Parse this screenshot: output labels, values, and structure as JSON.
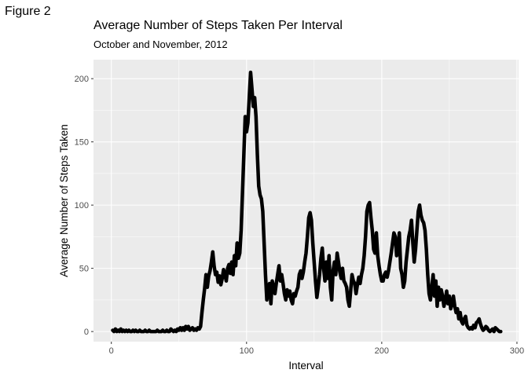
{
  "figure_label": "Figure 2",
  "chart_data": {
    "type": "line",
    "title": "Average Number of Steps Taken Per Interval",
    "subtitle": "October and November, 2012",
    "xlabel": "Interval",
    "ylabel": "Average Number of Steps Taken",
    "xlim": [
      -13.2,
      301.2
    ],
    "ylim": [
      -8,
      215
    ],
    "xticks": [
      0,
      100,
      200,
      300
    ],
    "yticks": [
      0,
      50,
      100,
      150,
      200
    ],
    "grid": true,
    "background": "#ebebeb",
    "gridline_color": "#ffffff",
    "line_color": "#000000",
    "series": [
      {
        "values": [
          [
            1,
            1
          ],
          [
            2,
            0
          ],
          [
            3,
            2
          ],
          [
            4,
            0
          ],
          [
            5,
            1
          ],
          [
            6,
            0
          ],
          [
            7,
            2
          ],
          [
            8,
            0
          ],
          [
            9,
            1
          ],
          [
            10,
            0
          ],
          [
            11,
            1
          ],
          [
            12,
            0
          ],
          [
            13,
            1
          ],
          [
            14,
            0
          ],
          [
            15,
            0
          ],
          [
            16,
            1
          ],
          [
            17,
            0
          ],
          [
            18,
            1
          ],
          [
            19,
            0
          ],
          [
            20,
            0
          ],
          [
            21,
            1
          ],
          [
            22,
            0
          ],
          [
            23,
            0
          ],
          [
            24,
            0
          ],
          [
            25,
            1
          ],
          [
            26,
            0
          ],
          [
            27,
            0
          ],
          [
            28,
            1
          ],
          [
            29,
            0
          ],
          [
            30,
            0
          ],
          [
            31,
            0
          ],
          [
            32,
            0
          ],
          [
            33,
            0
          ],
          [
            34,
            1
          ],
          [
            35,
            0
          ],
          [
            36,
            0
          ],
          [
            37,
            0
          ],
          [
            38,
            1
          ],
          [
            39,
            0
          ],
          [
            40,
            0
          ],
          [
            41,
            1
          ],
          [
            42,
            0
          ],
          [
            43,
            0
          ],
          [
            44,
            2
          ],
          [
            45,
            1
          ],
          [
            46,
            0
          ],
          [
            47,
            1
          ],
          [
            48,
            0
          ],
          [
            49,
            2
          ],
          [
            50,
            1
          ],
          [
            51,
            3
          ],
          [
            52,
            1
          ],
          [
            53,
            3
          ],
          [
            54,
            1
          ],
          [
            55,
            4
          ],
          [
            56,
            2
          ],
          [
            57,
            4
          ],
          [
            58,
            1
          ],
          [
            59,
            2
          ],
          [
            60,
            3
          ],
          [
            61,
            1
          ],
          [
            62,
            2
          ],
          [
            63,
            1
          ],
          [
            64,
            3
          ],
          [
            65,
            2
          ],
          [
            66,
            4
          ],
          [
            67,
            15
          ],
          [
            68,
            25
          ],
          [
            69,
            34
          ],
          [
            70,
            45
          ],
          [
            71,
            35
          ],
          [
            72,
            44
          ],
          [
            73,
            48
          ],
          [
            74,
            55
          ],
          [
            75,
            63
          ],
          [
            76,
            52
          ],
          [
            77,
            45
          ],
          [
            78,
            47
          ],
          [
            79,
            39
          ],
          [
            80,
            44
          ],
          [
            81,
            37
          ],
          [
            82,
            42
          ],
          [
            83,
            49
          ],
          [
            84,
            45
          ],
          [
            85,
            40
          ],
          [
            86,
            50
          ],
          [
            87,
            53
          ],
          [
            88,
            46
          ],
          [
            89,
            55
          ],
          [
            90,
            45
          ],
          [
            91,
            60
          ],
          [
            92,
            52
          ],
          [
            93,
            70
          ],
          [
            94,
            58
          ],
          [
            95,
            62
          ],
          [
            96,
            80
          ],
          [
            97,
            110
          ],
          [
            98,
            140
          ],
          [
            99,
            170
          ],
          [
            100,
            158
          ],
          [
            101,
            165
          ],
          [
            102,
            185
          ],
          [
            103,
            205
          ],
          [
            104,
            192
          ],
          [
            105,
            178
          ],
          [
            106,
            185
          ],
          [
            107,
            170
          ],
          [
            108,
            140
          ],
          [
            109,
            115
          ],
          [
            110,
            108
          ],
          [
            111,
            105
          ],
          [
            112,
            95
          ],
          [
            113,
            70
          ],
          [
            114,
            45
          ],
          [
            115,
            25
          ],
          [
            116,
            35
          ],
          [
            117,
            38
          ],
          [
            118,
            22
          ],
          [
            119,
            40
          ],
          [
            120,
            35
          ],
          [
            121,
            30
          ],
          [
            122,
            38
          ],
          [
            123,
            45
          ],
          [
            124,
            52
          ],
          [
            125,
            40
          ],
          [
            126,
            45
          ],
          [
            127,
            38
          ],
          [
            128,
            30
          ],
          [
            129,
            25
          ],
          [
            130,
            33
          ],
          [
            131,
            28
          ],
          [
            132,
            32
          ],
          [
            133,
            25
          ],
          [
            134,
            22
          ],
          [
            135,
            30
          ],
          [
            136,
            28
          ],
          [
            137,
            32
          ],
          [
            138,
            35
          ],
          [
            139,
            45
          ],
          [
            140,
            48
          ],
          [
            141,
            42
          ],
          [
            142,
            47
          ],
          [
            143,
            55
          ],
          [
            144,
            62
          ],
          [
            145,
            75
          ],
          [
            146,
            90
          ],
          [
            147,
            94
          ],
          [
            148,
            88
          ],
          [
            149,
            70
          ],
          [
            150,
            55
          ],
          [
            151,
            40
          ],
          [
            152,
            27
          ],
          [
            153,
            35
          ],
          [
            154,
            45
          ],
          [
            155,
            58
          ],
          [
            156,
            66
          ],
          [
            157,
            50
          ],
          [
            158,
            40
          ],
          [
            159,
            55
          ],
          [
            160,
            42
          ],
          [
            161,
            60
          ],
          [
            162,
            35
          ],
          [
            163,
            25
          ],
          [
            164,
            48
          ],
          [
            165,
            55
          ],
          [
            166,
            45
          ],
          [
            167,
            62
          ],
          [
            168,
            55
          ],
          [
            169,
            47
          ],
          [
            170,
            42
          ],
          [
            171,
            50
          ],
          [
            172,
            40
          ],
          [
            173,
            38
          ],
          [
            174,
            35
          ],
          [
            175,
            25
          ],
          [
            176,
            20
          ],
          [
            177,
            32
          ],
          [
            178,
            45
          ],
          [
            179,
            40
          ],
          [
            180,
            38
          ],
          [
            181,
            30
          ],
          [
            182,
            37
          ],
          [
            183,
            43
          ],
          [
            184,
            38
          ],
          [
            185,
            45
          ],
          [
            186,
            50
          ],
          [
            187,
            60
          ],
          [
            188,
            75
          ],
          [
            189,
            95
          ],
          [
            190,
            100
          ],
          [
            191,
            102
          ],
          [
            192,
            90
          ],
          [
            193,
            80
          ],
          [
            194,
            65
          ],
          [
            195,
            62
          ],
          [
            196,
            78
          ],
          [
            197,
            60
          ],
          [
            198,
            52
          ],
          [
            199,
            45
          ],
          [
            200,
            40
          ],
          [
            201,
            40
          ],
          [
            202,
            45
          ],
          [
            203,
            47
          ],
          [
            204,
            43
          ],
          [
            205,
            48
          ],
          [
            206,
            55
          ],
          [
            207,
            62
          ],
          [
            208,
            70
          ],
          [
            209,
            78
          ],
          [
            210,
            75
          ],
          [
            211,
            60
          ],
          [
            212,
            65
          ],
          [
            213,
            78
          ],
          [
            214,
            50
          ],
          [
            215,
            45
          ],
          [
            216,
            35
          ],
          [
            217,
            40
          ],
          [
            218,
            55
          ],
          [
            219,
            65
          ],
          [
            220,
            75
          ],
          [
            221,
            80
          ],
          [
            222,
            88
          ],
          [
            223,
            70
          ],
          [
            224,
            55
          ],
          [
            225,
            65
          ],
          [
            226,
            80
          ],
          [
            227,
            95
          ],
          [
            228,
            100
          ],
          [
            229,
            92
          ],
          [
            230,
            88
          ],
          [
            231,
            86
          ],
          [
            232,
            80
          ],
          [
            233,
            65
          ],
          [
            234,
            45
          ],
          [
            235,
            30
          ],
          [
            236,
            25
          ],
          [
            237,
            35
          ],
          [
            238,
            45
          ],
          [
            239,
            28
          ],
          [
            240,
            40
          ],
          [
            241,
            20
          ],
          [
            242,
            35
          ],
          [
            243,
            25
          ],
          [
            244,
            33
          ],
          [
            245,
            28
          ],
          [
            246,
            20
          ],
          [
            247,
            25
          ],
          [
            248,
            32
          ],
          [
            249,
            22
          ],
          [
            250,
            28
          ],
          [
            251,
            18
          ],
          [
            252,
            22
          ],
          [
            253,
            28
          ],
          [
            254,
            20
          ],
          [
            255,
            15
          ],
          [
            256,
            18
          ],
          [
            257,
            10
          ],
          [
            258,
            15
          ],
          [
            259,
            8
          ],
          [
            260,
            6
          ],
          [
            261,
            10
          ],
          [
            262,
            12
          ],
          [
            263,
            5
          ],
          [
            264,
            3
          ],
          [
            265,
            2
          ],
          [
            266,
            3
          ],
          [
            267,
            2
          ],
          [
            268,
            5
          ],
          [
            269,
            3
          ],
          [
            270,
            7
          ],
          [
            271,
            8
          ],
          [
            272,
            10
          ],
          [
            273,
            6
          ],
          [
            274,
            3
          ],
          [
            275,
            1
          ],
          [
            276,
            2
          ],
          [
            277,
            4
          ],
          [
            278,
            3
          ],
          [
            279,
            1
          ],
          [
            280,
            0
          ],
          [
            281,
            1
          ],
          [
            282,
            2
          ],
          [
            283,
            0
          ],
          [
            284,
            3
          ],
          [
            285,
            2
          ],
          [
            286,
            1
          ],
          [
            287,
            0
          ],
          [
            288,
            0
          ]
        ]
      }
    ]
  }
}
